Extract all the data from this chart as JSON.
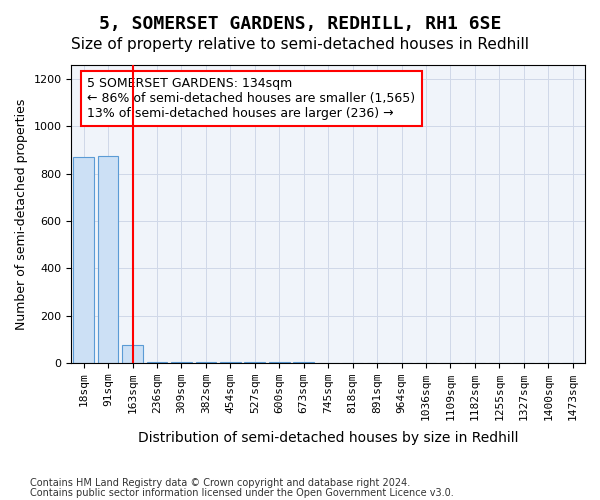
{
  "title": "5, SOMERSET GARDENS, REDHILL, RH1 6SE",
  "subtitle": "Size of property relative to semi-detached houses in Redhill",
  "xlabel": "Distribution of semi-detached houses by size in Redhill",
  "ylabel": "Number of semi-detached properties",
  "footer1": "Contains HM Land Registry data © Crown copyright and database right 2024.",
  "footer2": "Contains public sector information licensed under the Open Government Licence v3.0.",
  "bins": [
    "18sqm",
    "91sqm",
    "163sqm",
    "236sqm",
    "309sqm",
    "382sqm",
    "454sqm",
    "527sqm",
    "600sqm",
    "673sqm",
    "745sqm",
    "818sqm",
    "891sqm",
    "964sqm",
    "1036sqm",
    "1109sqm",
    "1182sqm",
    "1255sqm",
    "1327sqm",
    "1400sqm",
    "1473sqm"
  ],
  "values": [
    870,
    875,
    75,
    5,
    3,
    2,
    2,
    2,
    2,
    2,
    1,
    1,
    1,
    1,
    1,
    1,
    1,
    1,
    1,
    1,
    0
  ],
  "bar_color": "#cce0f5",
  "bar_edge_color": "#5b9bd5",
  "property_line_x": 2,
  "property_line_color": "red",
  "annotation_text": "5 SOMERSET GARDENS: 134sqm\n← 86% of semi-detached houses are smaller (1,565)\n13% of semi-detached houses are larger (236) →",
  "annotation_box_color": "red",
  "ylim": [
    0,
    1260
  ],
  "title_fontsize": 13,
  "subtitle_fontsize": 11,
  "xlabel_fontsize": 10,
  "ylabel_fontsize": 9,
  "tick_fontsize": 8,
  "annotation_fontsize": 9
}
